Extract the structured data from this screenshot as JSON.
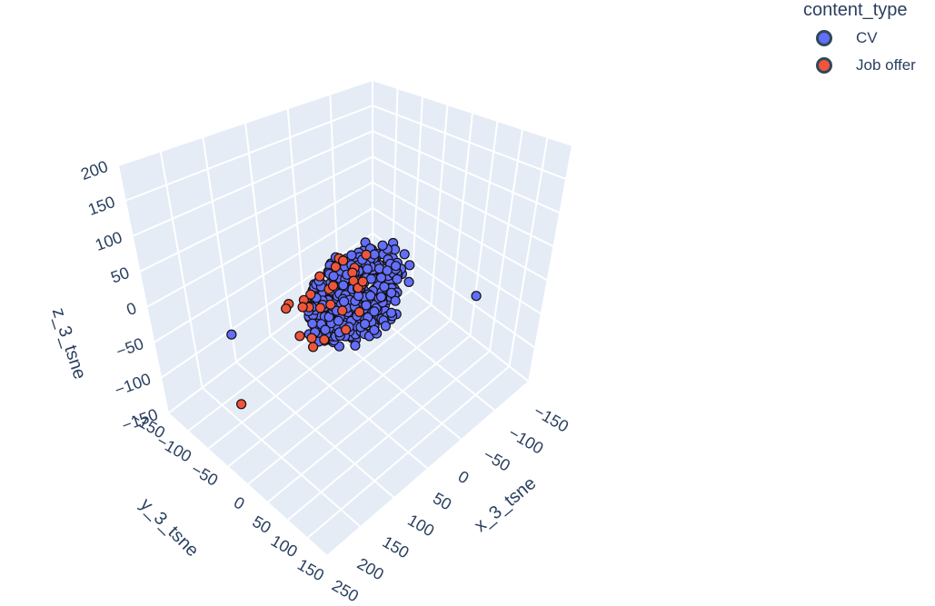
{
  "chart_data": {
    "type": "scatter",
    "dimensions": 3,
    "x_axis": {
      "title": "x_3_tsne",
      "ticks": [
        "−150",
        "−100",
        "−50",
        "0",
        "50",
        "100",
        "150",
        "200",
        "250"
      ],
      "range": [
        -150,
        250
      ]
    },
    "y_axis": {
      "title": "y_3_tsne",
      "ticks": [
        "−150",
        "−100",
        "−50",
        "0",
        "50",
        "100",
        "150"
      ],
      "range": [
        -150,
        150
      ]
    },
    "z_axis": {
      "title": "z_3_tsne",
      "ticks": [
        "−150",
        "−100",
        "−50",
        "0",
        "50",
        "100",
        "150",
        "200"
      ],
      "range": [
        -150,
        200
      ]
    },
    "grid": true,
    "legend": {
      "title": "content_type",
      "placement": "top-right",
      "items": [
        {
          "label": "CV",
          "color": "#636efa"
        },
        {
          "label": "Job offer",
          "color": "#ef553b"
        }
      ]
    },
    "series": [
      {
        "name": "CV",
        "color": "#636efa",
        "approx_point_count": 380
      },
      {
        "name": "Job offer",
        "color": "#ef553b",
        "approx_point_count": 28
      }
    ]
  }
}
